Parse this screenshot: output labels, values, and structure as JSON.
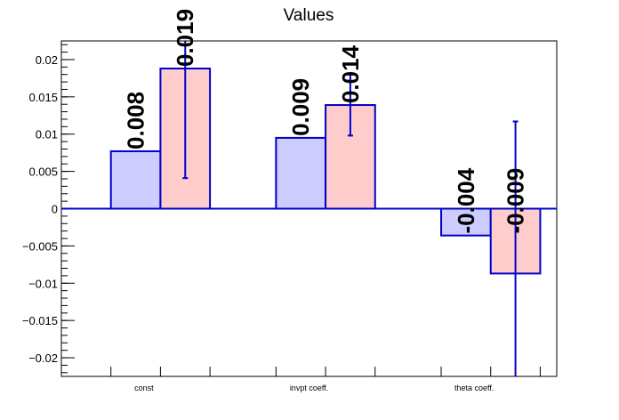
{
  "chart_data": {
    "type": "bar",
    "title": "Values",
    "xlabel": "",
    "ylabel": "",
    "categories": [
      "const",
      "invpt coeff.",
      "theta coeff."
    ],
    "ylim": [
      -0.0225,
      0.0225
    ],
    "yticks": [
      -0.02,
      -0.015,
      -0.01,
      -0.005,
      0,
      0.005,
      0.01,
      0.015,
      0.02
    ],
    "ytick_labels": [
      "−0.02",
      "−0.015",
      "−0.01",
      "−0.005",
      "0",
      "0.005",
      "0.01",
      "0.015",
      "0.02"
    ],
    "grid": false,
    "legend": "none",
    "series": [
      {
        "values": [
          0.0077,
          0.0095,
          -0.0036
        ],
        "labels": [
          "0.008",
          "0.009",
          "-0.004"
        ],
        "fill": "#ccccff",
        "stroke": "#0000cc"
      },
      {
        "values": [
          0.0188,
          0.0139,
          -0.0087
        ],
        "labels": [
          "0.019",
          "0.014",
          "-0.009"
        ],
        "errors": [
          0.0147,
          0.0041,
          0.0204
        ],
        "fill": "#ffcccc",
        "stroke": "#0000cc"
      }
    ]
  }
}
